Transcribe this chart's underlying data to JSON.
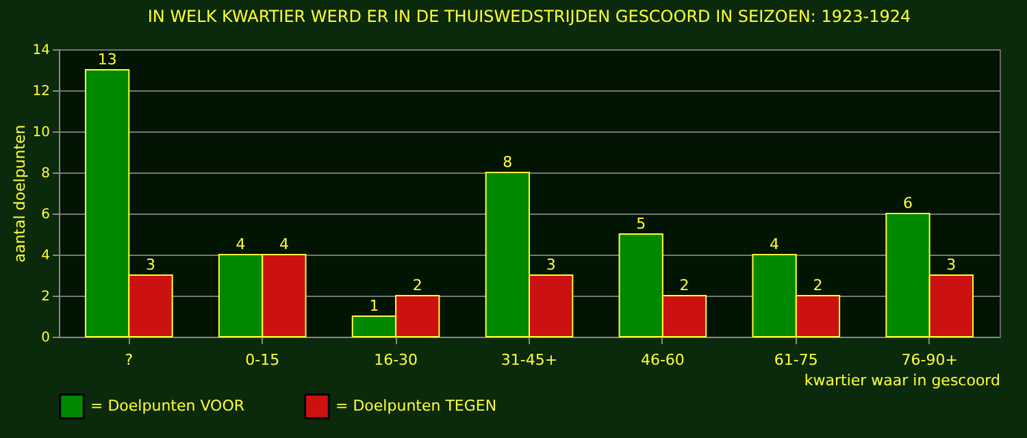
{
  "chart_data": {
    "type": "bar",
    "title": "IN WELK KWARTIER WERD ER IN DE THUISWEDSTRIJDEN GESCOORD IN SEIZOEN: 1923-1924",
    "xlabel": "kwartier waar in gescoord",
    "ylabel": "aantal doelpunten",
    "categories": [
      "?",
      "0-15",
      "16-30",
      "31-45+",
      "46-60",
      "61-75",
      "76-90+"
    ],
    "series": [
      {
        "name": "= Doelpunten VOOR",
        "color": "#008800",
        "values": [
          13,
          4,
          1,
          8,
          5,
          4,
          6
        ]
      },
      {
        "name": "= Doelpunten TEGEN",
        "color": "#cc1111",
        "values": [
          3,
          4,
          2,
          3,
          2,
          2,
          3
        ]
      }
    ],
    "ylim": [
      0,
      14
    ],
    "yticks": [
      0,
      2,
      4,
      6,
      8,
      10,
      12,
      14
    ],
    "grid": "y",
    "legend": "bottom",
    "data_labels": true
  }
}
